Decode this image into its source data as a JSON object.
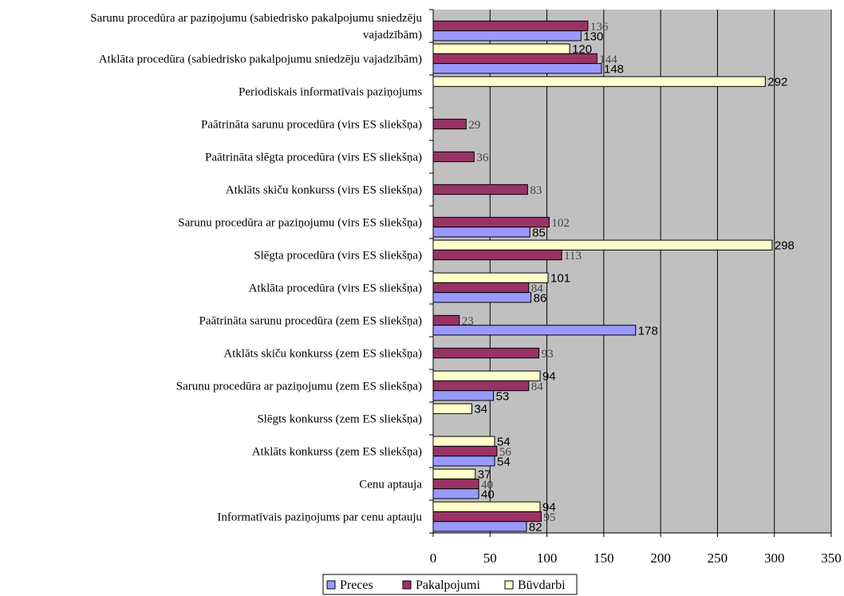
{
  "chart_data": {
    "type": "bar",
    "orientation": "horizontal",
    "title": "",
    "xlabel": "",
    "ylabel": "",
    "xlim": [
      0,
      350
    ],
    "xticks": [
      0,
      50,
      100,
      150,
      200,
      250,
      300,
      350
    ],
    "grid": true,
    "plot_background": "#c0c0c0",
    "legend_position": "bottom",
    "categories": [
      [
        "Sarunu procedūra ar paziņojumu (sabiedrisko pakalpojumu sniedzēju",
        "vajadzībām)"
      ],
      [
        "Atklāta procedūra (sabiedrisko pakalpojumu sniedzēju vajadzībām)"
      ],
      [
        "Periodiskais informatīvais paziņojums"
      ],
      [
        "Paātrināta sarunu procedūra (virs ES sliekšņa)"
      ],
      [
        "Paātrināta slēgta procedūra (virs ES sliekšņa)"
      ],
      [
        "Atklāts skiču konkurss (virs ES sliekšņa)"
      ],
      [
        "Sarunu procedūra ar paziņojumu (virs ES sliekšņa)"
      ],
      [
        "Slēgta procedūra (virs ES sliekšņa)"
      ],
      [
        "Atklāta procedūra (virs ES sliekšņa)"
      ],
      [
        "Paātrināta sarunu procedūra (zem ES sliekšņa)"
      ],
      [
        "Atklāts skiču konkurss (zem ES sliekšņa)"
      ],
      [
        "Sarunu procedūra ar paziņojumu (zem ES sliekšņa)"
      ],
      [
        "Slēgts konkurss (zem ES sliekšņa)"
      ],
      [
        "Atklāts konkurss (zem ES sliekšņa)"
      ],
      [
        "Cenu aptauja"
      ],
      [
        "Informatīvais paziņojums par cenu aptauju"
      ]
    ],
    "series": [
      {
        "name": "Būvdarbi",
        "color": "#ffffcc",
        "label_style": "sans",
        "values": [
          null,
          120,
          292,
          null,
          null,
          null,
          null,
          298,
          101,
          null,
          null,
          94,
          34,
          54,
          37,
          94
        ]
      },
      {
        "name": "Pakalpojumi",
        "color": "#993366",
        "label_style": "serif",
        "values": [
          136,
          144,
          null,
          29,
          36,
          83,
          102,
          113,
          84,
          23,
          93,
          84,
          null,
          56,
          40,
          95
        ]
      },
      {
        "name": "Preces",
        "color": "#9999ff",
        "label_style": "sans",
        "values": [
          130,
          148,
          null,
          null,
          null,
          null,
          85,
          null,
          86,
          178,
          null,
          53,
          null,
          54,
          40,
          82
        ]
      }
    ],
    "legend_order": [
      "Preces",
      "Pakalpojumi",
      "Būvdarbi"
    ]
  }
}
